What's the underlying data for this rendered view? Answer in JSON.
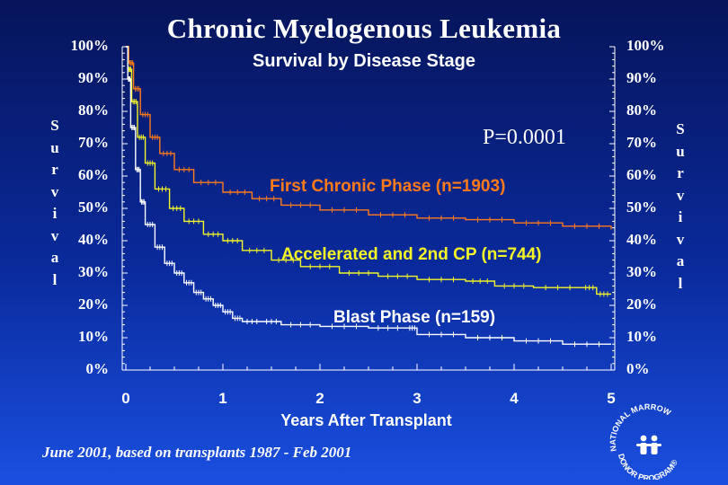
{
  "chart_data": {
    "type": "line",
    "title": "Chronic Myelogenous Leukemia",
    "subtitle": "Survival by Disease Stage",
    "annotation": "P=0.0001",
    "xlabel": "Years After Transplant",
    "ylabel": "Survival",
    "x_ticks": [
      "0",
      "1",
      "2",
      "3",
      "4",
      "5"
    ],
    "y_ticks": [
      "0%",
      "10%",
      "20%",
      "30%",
      "40%",
      "50%",
      "60%",
      "70%",
      "80%",
      "90%",
      "100%"
    ],
    "xlim": [
      0,
      5
    ],
    "ylim": [
      0,
      100
    ],
    "series": [
      {
        "name": "First Chronic Phase (n=1903)",
        "color": "#ff7a1a",
        "x": [
          0,
          0.03,
          0.08,
          0.15,
          0.25,
          0.35,
          0.5,
          0.7,
          1.0,
          1.3,
          1.6,
          2.0,
          2.5,
          3.0,
          3.5,
          4.0,
          4.5,
          5.0
        ],
        "y": [
          100,
          95,
          87,
          79,
          72,
          67,
          62,
          58,
          55,
          53,
          51,
          49.5,
          48,
          47,
          46.5,
          45.5,
          44.5,
          43.5
        ]
      },
      {
        "name": "Accelerated and 2nd CP (n=744)",
        "color": "#f4f426",
        "x": [
          0,
          0.02,
          0.06,
          0.12,
          0.2,
          0.3,
          0.45,
          0.6,
          0.8,
          1.0,
          1.2,
          1.5,
          1.8,
          2.2,
          2.6,
          3.0,
          3.5,
          3.8,
          4.2,
          4.7,
          4.85,
          5.0
        ],
        "y": [
          100,
          93,
          83,
          72,
          64,
          56,
          50,
          46,
          42,
          40,
          37,
          34,
          32,
          30,
          29,
          28,
          27.5,
          26,
          25.5,
          25.5,
          23.5,
          23.5
        ]
      },
      {
        "name": "Blast Phase (n=159)",
        "color": "#ffffff",
        "x": [
          0,
          0.02,
          0.05,
          0.1,
          0.15,
          0.2,
          0.3,
          0.4,
          0.5,
          0.6,
          0.7,
          0.8,
          0.9,
          1.0,
          1.1,
          1.2,
          1.4,
          1.6,
          2.0,
          2.5,
          2.9,
          3.0,
          3.5,
          4.0,
          4.5,
          5.0
        ],
        "y": [
          100,
          90,
          75,
          62,
          52,
          45,
          38,
          33,
          30,
          27,
          24,
          22,
          20,
          18,
          16,
          15,
          15,
          14,
          13.5,
          13,
          13,
          11,
          10,
          9,
          8,
          8
        ]
      }
    ]
  },
  "footnote": "June 2001, based on transplants 1987 - Feb 2001",
  "logo": {
    "text_top": "NATIONAL MARROW",
    "text_bottom": "DONOR PROGRAM®"
  }
}
